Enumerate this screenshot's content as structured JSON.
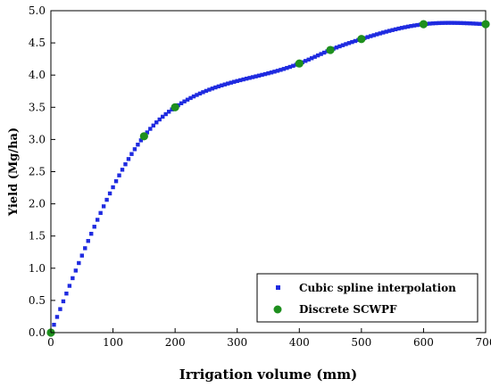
{
  "chart_data": {
    "type": "scatter",
    "xlabel": "Irrigation volume (mm)",
    "ylabel": "Yield (Mg/ha)",
    "xlim": [
      0,
      700
    ],
    "ylim": [
      0.0,
      5.0
    ],
    "xticks": [
      0,
      100,
      200,
      300,
      400,
      500,
      600,
      700
    ],
    "yticks": [
      "0.0",
      "0.5",
      "1.0",
      "1.5",
      "2.0",
      "2.5",
      "3.0",
      "3.5",
      "4.0",
      "4.5",
      "5.0"
    ],
    "grid": false,
    "legend_position": "bottom-right",
    "series": [
      {
        "name": "Cubic spline interpolation",
        "marker": "square",
        "color": "#1f2be0",
        "x_start": 0,
        "x_end": 700,
        "x_step": 5,
        "knots_x": [
          0,
          150,
          200,
          400,
          450,
          500,
          600,
          700
        ],
        "knots_y": [
          0.0,
          3.05,
          3.5,
          4.18,
          4.39,
          4.56,
          4.79,
          4.79
        ]
      },
      {
        "name": "Discrete SCWPF",
        "marker": "circle",
        "color": "#1e8f1e",
        "x": [
          0,
          150,
          200,
          400,
          450,
          500,
          600,
          700
        ],
        "y": [
          0.0,
          3.05,
          3.5,
          4.18,
          4.39,
          4.56,
          4.79,
          4.79
        ]
      }
    ]
  }
}
